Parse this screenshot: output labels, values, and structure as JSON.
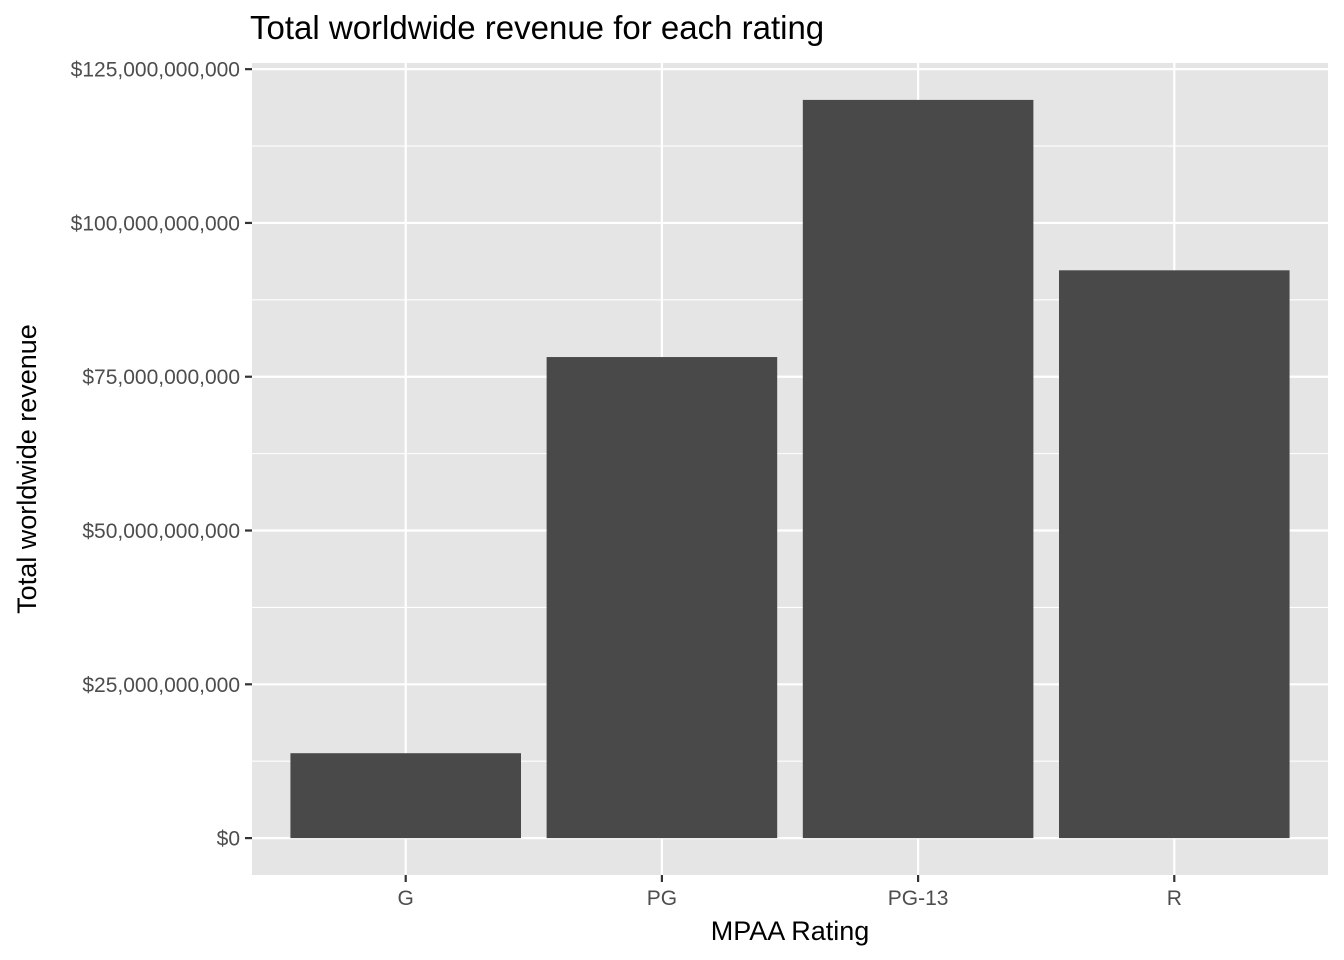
{
  "chart_data": {
    "type": "bar",
    "title": "Total worldwide revenue for each rating",
    "xlabel": "MPAA Rating",
    "ylabel": "Total worldwide revenue",
    "categories": [
      "G",
      "PG",
      "PG-13",
      "R"
    ],
    "values": [
      13800000000,
      78200000000,
      120000000000,
      92300000000
    ],
    "ylim": [
      -6000000000,
      126000000000
    ],
    "yticks": [
      0,
      25000000000,
      50000000000,
      75000000000,
      100000000000,
      125000000000
    ],
    "ytick_labels": [
      "$0",
      "$25,000,000,000",
      "$50,000,000,000",
      "$75,000,000,000",
      "$100,000,000,000",
      "$125,000,000,000"
    ],
    "grid": true,
    "legend": "none",
    "colors": {
      "bar": "#494949",
      "panel": "#e5e5e5",
      "grid": "#ffffff",
      "tick": "#333333"
    }
  }
}
